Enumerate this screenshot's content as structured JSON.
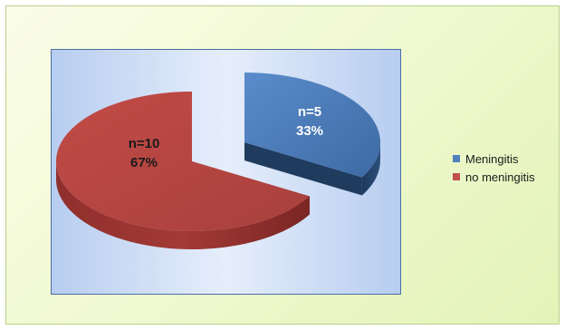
{
  "chart_data": {
    "type": "pie",
    "categories": [
      "Meningitis",
      "no meningitis"
    ],
    "values": [
      5,
      10
    ],
    "percentages": [
      "33%",
      "67%"
    ],
    "data_labels": [
      {
        "count": "n=5",
        "percent": "33%"
      },
      {
        "count": "n=10",
        "percent": "67%"
      }
    ],
    "colors": [
      "#4f81bd",
      "#c0504d"
    ],
    "legend_position": "right",
    "style": "3d-exploded"
  }
}
